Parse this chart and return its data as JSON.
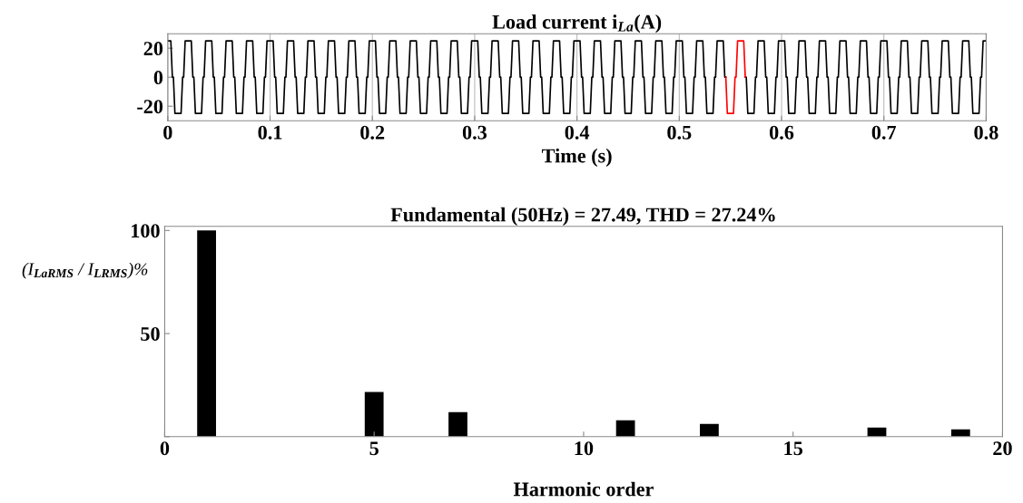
{
  "chart_data": [
    {
      "type": "line",
      "title": "Load current i$_{La}$(A)",
      "xlabel": "Time (s)",
      "xlim": [
        0,
        0.8
      ],
      "xticks": [
        0,
        0.1,
        0.2,
        0.3,
        0.4,
        0.5,
        0.6,
        0.7,
        0.8
      ],
      "ylim": [
        -30,
        30
      ],
      "yticks": [
        -20,
        0,
        20
      ],
      "grid": "x",
      "legend": false,
      "series": [
        {
          "color": "#000000",
          "x": [
            0,
            0.003,
            0.0045,
            0.0055,
            0.007,
            0.013,
            0.0145,
            0.0155,
            0.017,
            0.023,
            0.0245,
            0.0255,
            0.027,
            0.033,
            0.0345,
            0.0355,
            0.037,
            0.043,
            0.0445,
            0.0455,
            0.047,
            0.053,
            0.0545,
            0.0555,
            0.057,
            0.063,
            0.0645,
            0.0655,
            0.067,
            0.073,
            0.0745,
            0.0755,
            0.077,
            0.083,
            0.0845,
            0.0855,
            0.087,
            0.093,
            0.0945,
            0.0955,
            0.097,
            0.103,
            0.1045,
            0.1055,
            0.107,
            0.113,
            0.1145,
            0.1155,
            0.117,
            0.123,
            0.1245,
            0.1255,
            0.127,
            0.133,
            0.1345,
            0.1355,
            0.137,
            0.143,
            0.1445,
            0.1455,
            0.147,
            0.153,
            0.1545,
            0.1555,
            0.157,
            0.163,
            0.1645,
            0.1655,
            0.167,
            0.173,
            0.1745,
            0.1755,
            0.177,
            0.183,
            0.1845,
            0.1855,
            0.187,
            0.193,
            0.1945,
            0.1955,
            0.197,
            0.203,
            0.2045,
            0.2055,
            0.207,
            0.213,
            0.2145,
            0.2155,
            0.217,
            0.223,
            0.2245,
            0.2255,
            0.227,
            0.233,
            0.2345,
            0.2355,
            0.237,
            0.243,
            0.2445,
            0.2455,
            0.247,
            0.253,
            0.2545,
            0.2555,
            0.257,
            0.263,
            0.2645,
            0.2655,
            0.267,
            0.273,
            0.2745,
            0.2755,
            0.277,
            0.283,
            0.2845,
            0.2855,
            0.287,
            0.293,
            0.2945,
            0.2955,
            0.297,
            0.303,
            0.3045,
            0.3055,
            0.307,
            0.313,
            0.3145,
            0.3155,
            0.317,
            0.323,
            0.3245,
            0.3255,
            0.327,
            0.333,
            0.3345,
            0.3355,
            0.337,
            0.343,
            0.3445,
            0.3455,
            0.347,
            0.353,
            0.3545,
            0.3555,
            0.357,
            0.363,
            0.3645,
            0.3655,
            0.367,
            0.373,
            0.3745,
            0.3755,
            0.377,
            0.383,
            0.3845,
            0.3855,
            0.387,
            0.393,
            0.3945,
            0.3955,
            0.397,
            0.403,
            0.4045,
            0.4055,
            0.407,
            0.413,
            0.4145,
            0.4155,
            0.417,
            0.423,
            0.4245,
            0.4255,
            0.427,
            0.433,
            0.4345,
            0.4355,
            0.437,
            0.443,
            0.4445,
            0.4455,
            0.447,
            0.453,
            0.4545,
            0.4555,
            0.457,
            0.463,
            0.4645,
            0.4655,
            0.467,
            0.473,
            0.4745,
            0.4755,
            0.477,
            0.483,
            0.4845,
            0.4855,
            0.487,
            0.493,
            0.4945,
            0.4955,
            0.497,
            0.503,
            0.5045,
            0.5055,
            0.507,
            0.513,
            0.5145,
            0.5155,
            0.517,
            0.523,
            0.5245,
            0.5255,
            0.527,
            0.533,
            0.5345,
            0.5355,
            0.537,
            0.543,
            0.5445,
            0.5455,
            0.555,
            0.5645,
            0.5655,
            0.567,
            0.573,
            0.5745,
            0.5755,
            0.577,
            0.583,
            0.5845,
            0.5855,
            0.587,
            0.593,
            0.5945,
            0.5955,
            0.597,
            0.603,
            0.6045,
            0.6055,
            0.607,
            0.613,
            0.6145,
            0.6155,
            0.617,
            0.623,
            0.6245,
            0.6255,
            0.627,
            0.633,
            0.6345,
            0.6355,
            0.637,
            0.643,
            0.6445,
            0.6455,
            0.647,
            0.653,
            0.6545,
            0.6555,
            0.657,
            0.663,
            0.6645,
            0.6655,
            0.667,
            0.673,
            0.6745,
            0.6755,
            0.677,
            0.683,
            0.6845,
            0.6855,
            0.687,
            0.693,
            0.6945,
            0.6955,
            0.697,
            0.703,
            0.7045,
            0.7055,
            0.707,
            0.713,
            0.7145,
            0.7155,
            0.717,
            0.723,
            0.7245,
            0.7255,
            0.727,
            0.733,
            0.7345,
            0.7355,
            0.737,
            0.743,
            0.7445,
            0.7455,
            0.747,
            0.753,
            0.7545,
            0.7555,
            0.757,
            0.763,
            0.7645,
            0.7655,
            0.767,
            0.773,
            0.7745,
            0.7755,
            0.777,
            0.783,
            0.7845,
            0.7855,
            0.787,
            0.793,
            0.7945,
            0.7955,
            0.797,
            0.8
          ],
          "values": [
            25,
            25,
            0,
            0,
            -25,
            -25,
            0,
            0,
            25,
            25,
            0,
            0,
            -25,
            -25,
            0,
            0,
            25,
            25,
            0,
            0,
            -25,
            -25,
            0,
            0,
            25,
            25,
            0,
            0,
            -25,
            -25,
            0,
            0,
            25,
            25,
            0,
            0,
            -25,
            -25,
            0,
            0,
            25,
            25,
            0,
            0,
            -25,
            -25,
            0,
            0,
            25,
            25,
            0,
            0,
            -25,
            -25,
            0,
            0,
            25,
            25,
            0,
            0,
            -25,
            -25,
            0,
            0,
            25,
            25,
            0,
            0,
            -25,
            -25,
            0,
            0,
            25,
            25,
            0,
            0,
            -25,
            -25,
            0,
            0,
            25,
            25,
            0,
            0,
            -25,
            -25,
            0,
            0,
            25,
            25,
            0,
            0,
            -25,
            -25,
            0,
            0,
            25,
            25,
            0,
            0,
            -25,
            -25,
            0,
            0,
            25,
            25,
            0,
            0,
            -25,
            -25,
            0,
            0,
            25,
            25,
            0,
            0,
            -25,
            -25,
            0,
            0,
            25,
            25,
            0,
            0,
            -25,
            -25,
            0,
            0,
            25,
            25,
            0,
            0,
            -25,
            -25,
            0,
            0,
            25,
            25,
            0,
            0,
            -25,
            -25,
            0,
            0,
            25,
            25,
            0,
            0,
            -25,
            -25,
            0,
            0,
            25,
            25,
            0,
            0,
            -25,
            -25,
            0,
            0,
            25,
            25,
            0,
            0,
            -25,
            -25,
            0,
            0,
            25,
            25,
            0,
            0,
            -25,
            -25,
            0,
            0,
            25,
            25,
            0,
            0,
            -25,
            -25,
            0,
            0,
            25,
            25,
            0,
            0,
            -25,
            -25,
            0,
            0,
            25,
            25,
            0,
            0,
            -25,
            -25,
            0,
            0,
            25,
            25,
            0,
            0,
            -25,
            -25,
            0,
            0,
            25,
            25,
            0,
            0,
            -25,
            -25,
            0,
            0,
            25,
            25,
            0,
            0,
            null,
            0,
            0,
            -25,
            -25,
            0,
            0,
            25,
            25,
            0,
            0,
            -25,
            -25,
            0,
            0,
            25,
            25,
            0,
            0,
            -25,
            -25,
            0,
            0,
            25,
            25,
            0,
            0,
            -25,
            -25,
            0,
            0,
            25,
            25,
            0,
            0,
            -25,
            -25,
            0,
            0,
            25,
            25,
            0,
            0,
            -25,
            -25,
            0,
            0,
            25,
            25,
            0,
            0,
            -25,
            -25,
            0,
            0,
            25,
            25,
            0,
            0,
            -25,
            -25,
            0,
            0,
            25,
            25,
            0,
            0,
            -25,
            -25,
            0,
            0,
            25,
            25,
            0,
            0,
            -25,
            -25,
            0,
            0,
            25,
            25,
            0,
            0,
            -25,
            -25,
            0,
            0,
            25,
            25,
            0,
            0,
            -25,
            -25,
            0,
            0,
            25,
            25
          ]
        },
        {
          "color": "#ff0000",
          "x": [
            0.5455,
            0.547,
            0.553,
            0.5545,
            0.5555,
            0.557,
            0.563,
            0.5645
          ],
          "values": [
            0,
            -25,
            -25,
            0,
            0,
            25,
            25,
            0
          ]
        }
      ]
    },
    {
      "type": "bar",
      "title": "Fundamental (50Hz) = 27.49, THD = 27.24%",
      "xlabel": "Harmonic order",
      "ylabel": "(I$_{LaRMS}$ / I$_{LRMS}$)%",
      "x": [
        1,
        2,
        3,
        4,
        5,
        6,
        7,
        8,
        9,
        10,
        11,
        12,
        13,
        14,
        15,
        16,
        17,
        18,
        19
      ],
      "values": [
        100,
        0,
        0,
        0,
        21.6,
        0,
        11.9,
        0,
        0,
        0,
        7.9,
        0,
        6.2,
        0,
        0,
        0,
        4.4,
        0,
        3.5
      ],
      "color": "#000000",
      "xlim": [
        0,
        20
      ],
      "xticks": [
        0,
        5,
        10,
        15,
        20
      ],
      "ylim": [
        0,
        102
      ],
      "yticks": [
        {
          "value": 0,
          "label": null
        },
        50,
        100
      ],
      "grid": false,
      "legend": false
    }
  ]
}
